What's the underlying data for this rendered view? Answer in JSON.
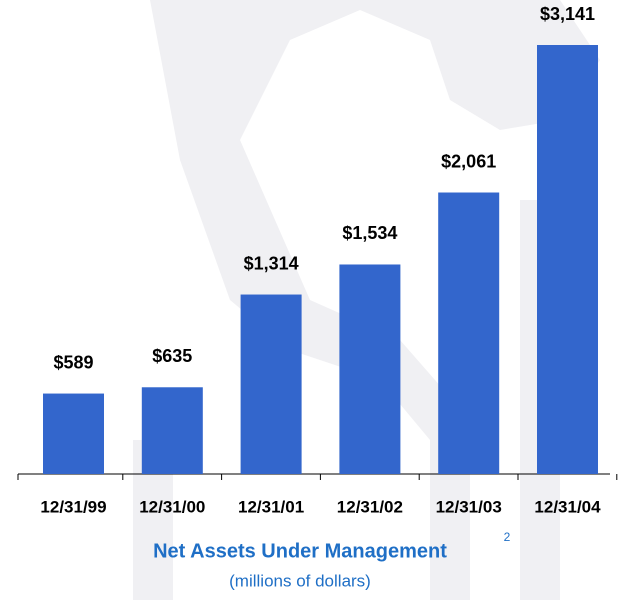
{
  "chart_data": {
    "type": "bar",
    "title": "Net Assets Under Management",
    "title_superscript": "2",
    "subtitle": "(millions of dollars)",
    "categories": [
      "12/31/99",
      "12/31/00",
      "12/31/01",
      "12/31/02",
      "12/31/03",
      "12/31/04"
    ],
    "values": [
      589,
      635,
      1314,
      1534,
      2061,
      3141
    ],
    "value_labels": [
      "$589",
      "$635",
      "$1,314",
      "$1,534",
      "$2,061",
      "$3,141"
    ],
    "color": "#3366cc"
  }
}
